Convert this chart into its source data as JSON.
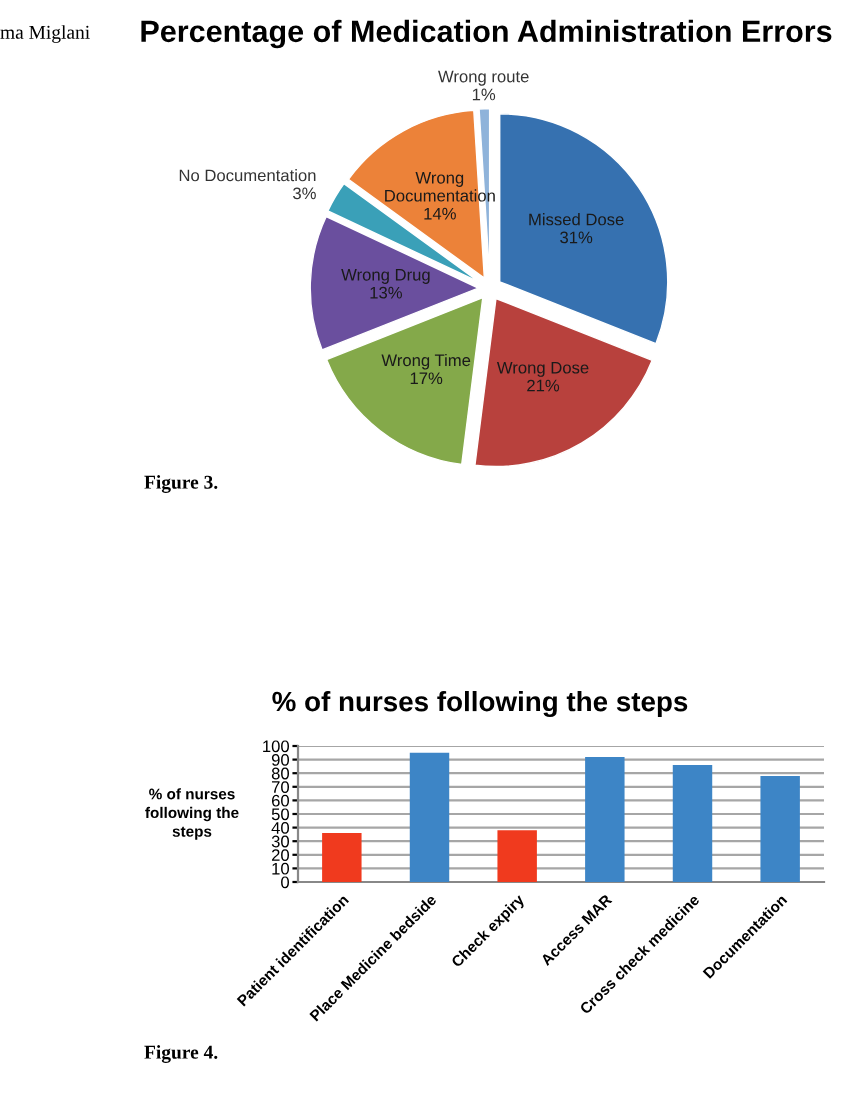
{
  "chart_data": [
    {
      "type": "pie",
      "title": "Percentage of Medication Administration Errors",
      "categories": [
        "Missed Dose",
        "Wrong Dose",
        "Wrong Time",
        "Wrong Drug",
        "No Documentation",
        "Wrong Documentation",
        "Wrong route"
      ],
      "values": [
        31,
        21,
        17,
        13,
        3,
        14,
        1
      ],
      "value_labels": [
        "31%",
        "21%",
        "17%",
        "13%",
        "3%",
        "14%",
        "1%"
      ],
      "colors": [
        "#3671b0",
        "#b8413d",
        "#84a94a",
        "#6a4f9e",
        "#3aa0b8",
        "#ec8239",
        "#8fb3da"
      ],
      "annotations": [
        "ma Miglani",
        "Figure 3."
      ]
    },
    {
      "type": "bar",
      "title": "% of nurses following the steps",
      "ylabel": "% of nurses\nfollowing the\nsteps",
      "categories": [
        "Patient identification",
        "Place Medicine bedside",
        "Check expiry",
        "Access MAR",
        "Cross check medicine",
        "Documentation"
      ],
      "values": [
        36,
        95,
        38,
        92,
        86,
        78
      ],
      "colors": [
        "#f03a1e",
        "#3d85c6",
        "#f03a1e",
        "#3d85c6",
        "#3d85c6",
        "#3d85c6"
      ],
      "ylim": [
        0,
        100
      ],
      "yticks": [
        0,
        10,
        20,
        30,
        40,
        50,
        60,
        70,
        80,
        90,
        100
      ],
      "grid": "y",
      "annotations": [
        "Figure 4."
      ]
    }
  ]
}
